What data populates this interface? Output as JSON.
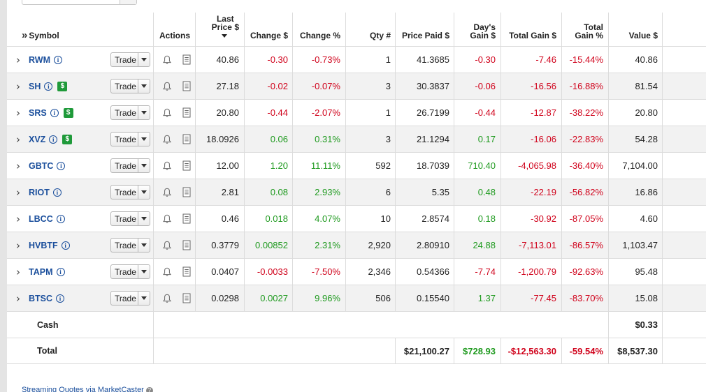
{
  "header": {
    "expand_glyph": "»",
    "symbol": "Symbol",
    "actions": "Actions",
    "last_price_1": "Last",
    "last_price_2": "Price $",
    "change_dollar": "Change $",
    "change_pct": "Change %",
    "qty": "Qty #",
    "price_paid": "Price Paid $",
    "days_gain_1": "Day's",
    "days_gain_2": "Gain $",
    "total_gain": "Total Gain $",
    "total_gain_pct_1": "Total",
    "total_gain_pct_2": "Gain %",
    "value": "Value $"
  },
  "trade_label": "Trade",
  "rows": [
    {
      "symbol": "RWM",
      "badge": false,
      "last": "40.86",
      "chg": "-0.30",
      "chgp": "-0.73%",
      "qty": "1",
      "paid": "41.3685",
      "day": "-0.30",
      "tg": "-7.46",
      "tgp": "-15.44%",
      "val": "40.86"
    },
    {
      "symbol": "SH",
      "badge": true,
      "last": "27.18",
      "chg": "-0.02",
      "chgp": "-0.07%",
      "qty": "3",
      "paid": "30.3837",
      "day": "-0.06",
      "tg": "-16.56",
      "tgp": "-16.88%",
      "val": "81.54"
    },
    {
      "symbol": "SRS",
      "badge": true,
      "last": "20.80",
      "chg": "-0.44",
      "chgp": "-2.07%",
      "qty": "1",
      "paid": "26.7199",
      "day": "-0.44",
      "tg": "-12.87",
      "tgp": "-38.22%",
      "val": "20.80"
    },
    {
      "symbol": "XVZ",
      "badge": true,
      "last": "18.0926",
      "chg": "0.06",
      "chgp": "0.31%",
      "qty": "3",
      "paid": "21.1294",
      "day": "0.17",
      "tg": "-16.06",
      "tgp": "-22.83%",
      "val": "54.28"
    },
    {
      "symbol": "GBTC",
      "badge": false,
      "last": "12.00",
      "chg": "1.20",
      "chgp": "11.11%",
      "qty": "592",
      "paid": "18.7039",
      "day": "710.40",
      "tg": "-4,065.98",
      "tgp": "-36.40%",
      "val": "7,104.00"
    },
    {
      "symbol": "RIOT",
      "badge": false,
      "last": "2.81",
      "chg": "0.08",
      "chgp": "2.93%",
      "qty": "6",
      "paid": "5.35",
      "day": "0.48",
      "tg": "-22.19",
      "tgp": "-56.82%",
      "val": "16.86"
    },
    {
      "symbol": "LBCC",
      "badge": false,
      "last": "0.46",
      "chg": "0.018",
      "chgp": "4.07%",
      "qty": "10",
      "paid": "2.8574",
      "day": "0.18",
      "tg": "-30.92",
      "tgp": "-87.05%",
      "val": "4.60"
    },
    {
      "symbol": "HVBTF",
      "badge": false,
      "last": "0.3779",
      "chg": "0.00852",
      "chgp": "2.31%",
      "qty": "2,920",
      "paid": "2.80910",
      "day": "24.88",
      "tg": "-7,113.01",
      "tgp": "-86.57%",
      "val": "1,103.47"
    },
    {
      "symbol": "TAPM",
      "badge": false,
      "last": "0.0407",
      "chg": "-0.0033",
      "chgp": "-7.50%",
      "qty": "2,346",
      "paid": "0.54366",
      "day": "-7.74",
      "tg": "-1,200.79",
      "tgp": "-92.63%",
      "val": "95.48"
    },
    {
      "symbol": "BTSC",
      "badge": false,
      "last": "0.0298",
      "chg": "0.0027",
      "chgp": "9.96%",
      "qty": "506",
      "paid": "0.15540",
      "day": "1.37",
      "tg": "-77.45",
      "tgp": "-83.70%",
      "val": "15.08"
    }
  ],
  "cash": {
    "label": "Cash",
    "value": "$0.33"
  },
  "total": {
    "label": "Total",
    "price_paid": "$21,100.27",
    "days_gain": "$728.93",
    "total_gain": "-$12,563.30",
    "total_gain_pct": "-59.54%",
    "value": "$8,537.30"
  },
  "footer": {
    "link": "Streaming Quotes via MarketCaster",
    "help_glyph": "?"
  },
  "icons": {
    "expand": "chevron-right-icon",
    "info": "info-icon",
    "badge": "dollar-badge-icon",
    "alert": "bell-icon",
    "notes": "document-icon"
  },
  "colors": {
    "positive": "#1f9a1f",
    "negative": "#d0021b",
    "link": "#1b4f9c",
    "badge": "#1f9a3a"
  }
}
